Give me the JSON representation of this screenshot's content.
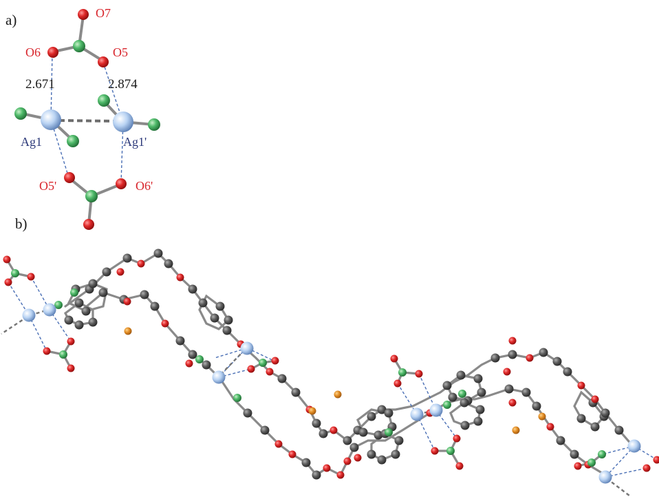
{
  "panels": {
    "a": "a)",
    "b": "b)"
  },
  "labels": {
    "o7": "O7",
    "o6": "O6",
    "o5": "O5",
    "o5p": "O5'",
    "o6p": "O6'",
    "ag1": "Ag1",
    "ag1p": "Ag1'"
  },
  "distances": {
    "d1": "2.671",
    "d2": "2.874"
  },
  "colors": {
    "oxygen": "#d8252c",
    "carbon_green": "#4fba6a",
    "silver": "#b9d3f3",
    "carbon_dark": "#5a5a5a",
    "anion_orange": "#e08a22",
    "coord_line": "#4a6fb5"
  }
}
